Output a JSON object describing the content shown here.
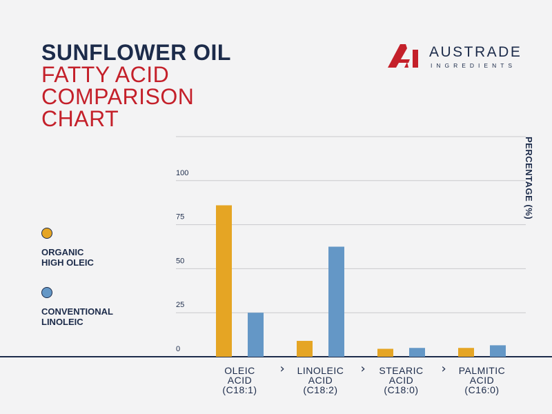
{
  "title": {
    "line1": "SUNFLOWER OIL",
    "line2": "FATTY ACID",
    "line3": "COMPARISON",
    "line4": "CHART"
  },
  "brand": {
    "mark": "AI",
    "name": "AUSTRADE",
    "sub": "INGREDIENTS",
    "color_red": "#c4202a",
    "color_navy": "#1c2b4a"
  },
  "legend": [
    {
      "label_line1": "ORGANIC",
      "label_line2": "HIGH OLEIC",
      "color": "#e5a524"
    },
    {
      "label_line1": "CONVENTIONAL",
      "label_line2": "LINOLEIC",
      "color": "#6497c6"
    }
  ],
  "chevron": "›",
  "chart_data": {
    "type": "bar",
    "ylabel": "PERCENTAGE (%)",
    "ylim": [
      0,
      125
    ],
    "yticks": [
      0,
      25,
      50,
      75,
      100
    ],
    "grid": true,
    "categories": [
      {
        "line1": "OLEIC",
        "line2": "ACID",
        "line3": "(C18:1)"
      },
      {
        "line1": "LINOLEIC",
        "line2": "ACID",
        "line3": "(C18:2)"
      },
      {
        "line1": "STEARIC",
        "line2": "ACID",
        "line3": "(C18:0)"
      },
      {
        "line1": "PALMITIC",
        "line2": "ACID",
        "line3": "(C16:0)"
      }
    ],
    "series": [
      {
        "name": "ORGANIC HIGH OLEIC",
        "color": "#e5a524",
        "values": [
          86,
          9,
          4.5,
          5
        ]
      },
      {
        "name": "CONVENTIONAL LINOLEIC",
        "color": "#6497c6",
        "values": [
          25,
          62.5,
          5,
          6.5
        ]
      }
    ]
  }
}
